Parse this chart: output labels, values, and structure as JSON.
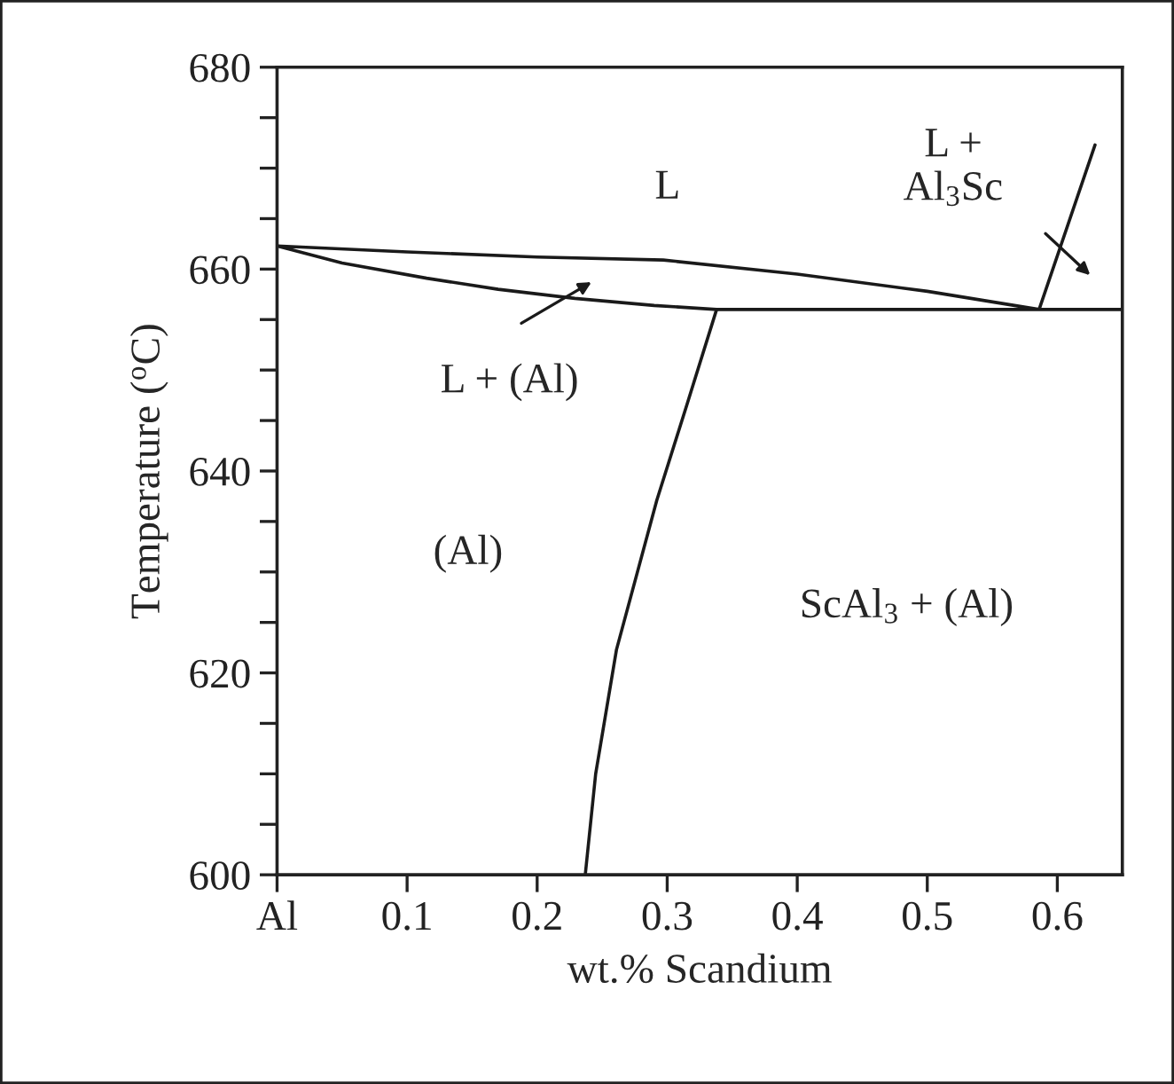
{
  "chart_data": {
    "type": "line",
    "xlabel": "wt.% Scandium",
    "ylabel": "Temperature ($^{o}$C)",
    "xlim": [
      0,
      0.65
    ],
    "ylim": [
      600,
      680
    ],
    "xticks": [
      {
        "value": 0,
        "label": "Al"
      },
      0.1,
      0.2,
      0.3,
      0.4,
      0.5,
      0.6
    ],
    "yticks": [
      600,
      {
        "value": 605,
        "label": null
      },
      {
        "value": 610,
        "label": null
      },
      {
        "value": 615,
        "label": null
      },
      620,
      {
        "value": 625,
        "label": null
      },
      {
        "value": 630,
        "label": null
      },
      {
        "value": 635,
        "label": null
      },
      640,
      {
        "value": 645,
        "label": null
      },
      {
        "value": 650,
        "label": null
      },
      {
        "value": 655,
        "label": null
      },
      660,
      {
        "value": 665,
        "label": null
      },
      {
        "value": 670,
        "label": null
      },
      {
        "value": 675,
        "label": null
      },
      680
    ],
    "grid": false,
    "legend": false,
    "marker": "none",
    "line_style": "solid",
    "series": [
      {
        "color": "#1a1a1a",
        "x": [
          0.65,
          0.338,
          0.29,
          0.229,
          0.17,
          0.115,
          0.05,
          0,
          0.1,
          0.2,
          0.297,
          0.4,
          0.5,
          0.586,
          0.629
        ],
        "values": [
          656.0,
          656.0,
          656.4,
          657.1,
          658.0,
          659.1,
          660.6,
          662.3,
          661.7,
          661.2,
          660.9,
          659.5,
          657.8,
          656.0,
          672.3
        ]
      },
      {
        "color": "#1a1a1a",
        "x": [
          0.338,
          0.315,
          0.292,
          0.261,
          0.245,
          0.237
        ],
        "values": [
          656.0,
          646.5,
          637.1,
          622.3,
          610.0,
          600.0
        ]
      }
    ],
    "annotations": [
      "L",
      "L + (Al)",
      "L +\nAl$_{3}$Sc",
      "(Al)",
      "ScAl$_{3}$ + (Al)"
    ]
  }
}
